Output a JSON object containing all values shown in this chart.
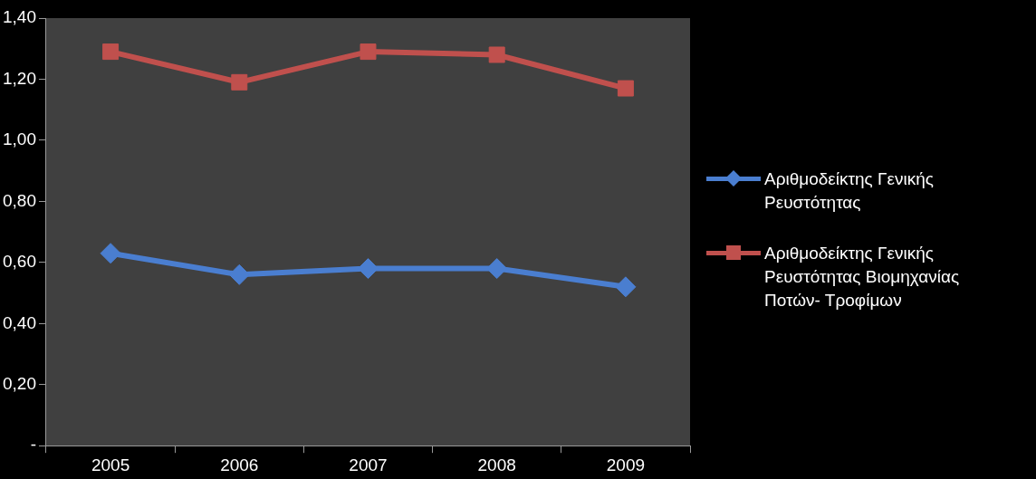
{
  "chart_data": {
    "type": "line",
    "categories": [
      "2005",
      "2006",
      "2007",
      "2008",
      "2009"
    ],
    "series": [
      {
        "name": "Αριθμοδείκτης Γενικής Ρευστότητας",
        "color": "#4a7ed0",
        "values": [
          0.63,
          0.56,
          0.58,
          0.58,
          0.52
        ],
        "marker": "diamond"
      },
      {
        "name": "Αριθμοδείκτης Γενικής Ρευστότητας Βιομηχανίας Ποτών- Τροφίμων",
        "color": "#c0504d",
        "values": [
          1.29,
          1.19,
          1.29,
          1.28,
          1.17
        ],
        "marker": "square"
      }
    ],
    "ylim": [
      0,
      1.4
    ],
    "yticks": [
      {
        "value": 0,
        "label": "-"
      },
      {
        "value": 0.2,
        "label": "0,20"
      },
      {
        "value": 0.4,
        "label": "0,40"
      },
      {
        "value": 0.6,
        "label": "0,60"
      },
      {
        "value": 0.8,
        "label": "0,80"
      },
      {
        "value": 1.0,
        "label": "1,00"
      },
      {
        "value": 1.2,
        "label": "1,20"
      },
      {
        "value": 1.4,
        "label": "1,40"
      }
    ],
    "grid": false,
    "legend": "right",
    "line_style": "solid"
  }
}
